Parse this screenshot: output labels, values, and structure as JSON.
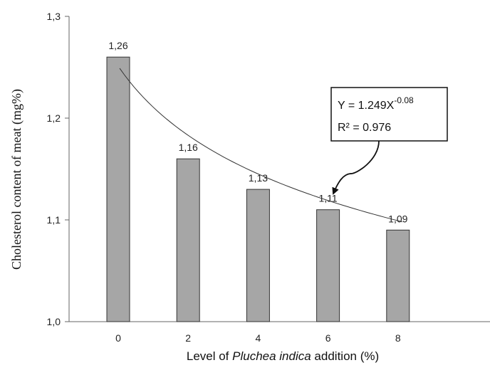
{
  "chart_data": {
    "type": "bar",
    "categories": [
      "0",
      "2",
      "4",
      "6",
      "8"
    ],
    "values": [
      1.26,
      1.16,
      1.13,
      1.11,
      1.09
    ],
    "data_labels": [
      "1,26",
      "1,16",
      "1,13",
      "1,11",
      "1,09"
    ],
    "xlabel_parts": {
      "before": "Level of ",
      "italic": "Pluchea indica",
      "after": " addition (%)"
    },
    "ylabel": "Cholesterol content of meat (mg%)",
    "ylim": [
      1.0,
      1.3
    ],
    "y_ticks": [
      1.0,
      1.1,
      1.2,
      1.3
    ],
    "y_tick_labels": [
      "1,0",
      "1,1",
      "1,2",
      "1,3"
    ],
    "grid": false,
    "legend": "none",
    "bar_color": "#a6a6a6",
    "bar_edge_color": "#333333",
    "trendline": {
      "type": "power",
      "a": 1.249,
      "b": -0.08,
      "x_start": 0,
      "x_end": 8,
      "start_value": 1.249,
      "end_value": 1.085,
      "color": "#333333"
    },
    "annotation": {
      "line1": "Y = 1.249X",
      "line1_exponent": "-0.08",
      "line2": "R² = 0.976",
      "style": "callout-box-with-arrow"
    }
  }
}
